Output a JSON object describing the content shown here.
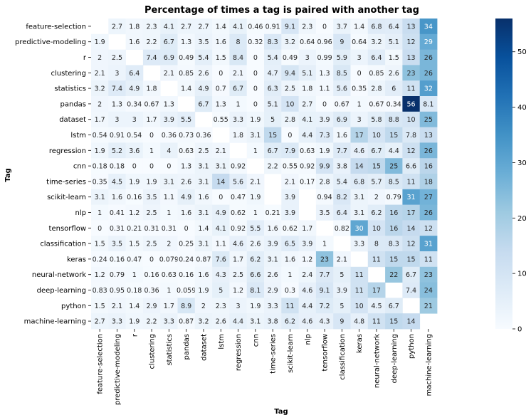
{
  "chart_data": {
    "type": "heatmap",
    "title": "Percentage of times a tag is paired with another tag",
    "xlabel": "Tag",
    "ylabel": "Tag",
    "x_categories": [
      "feature-selection",
      "predictive-modeling",
      "r",
      "clustering",
      "statistics",
      "pandas",
      "dataset",
      "lstm",
      "regression",
      "cnn",
      "time-series",
      "scikit-learn",
      "nlp",
      "tensorflow",
      "classification",
      "keras",
      "neural-network",
      "deep-learning",
      "python",
      "machine-learning"
    ],
    "y_categories": [
      "feature-selection",
      "predictive-modeling",
      "r",
      "clustering",
      "statistics",
      "pandas",
      "dataset",
      "lstm",
      "regression",
      "cnn",
      "time-series",
      "scikit-learn",
      "nlp",
      "tensorflow",
      "classification",
      "keras",
      "neural-network",
      "deep-learning",
      "python",
      "machine-learning"
    ],
    "values": [
      [
        null,
        2.7,
        1.8,
        2.3,
        4.1,
        2.7,
        2.7,
        1.4,
        4.1,
        0.46,
        0.91,
        9.1,
        2.3,
        0,
        3.7,
        1.4,
        6.8,
        6.4,
        13,
        34
      ],
      [
        1.9,
        null,
        1.6,
        2.2,
        6.7,
        1.3,
        3.5,
        1.6,
        8,
        0.32,
        8.3,
        3.2,
        0.64,
        0.96,
        9,
        0.64,
        3.2,
        5.1,
        12,
        29
      ],
      [
        2,
        2.5,
        null,
        7.4,
        6.9,
        0.49,
        5.4,
        1.5,
        8.4,
        0,
        5.4,
        0.49,
        3,
        0.99,
        5.9,
        3,
        6.4,
        1.5,
        13,
        26
      ],
      [
        2.1,
        3,
        6.4,
        null,
        2.1,
        0.85,
        2.6,
        0,
        2.1,
        0,
        4.7,
        9.4,
        5.1,
        1.3,
        8.5,
        0,
        0.85,
        2.6,
        23,
        26
      ],
      [
        3.2,
        7.4,
        4.9,
        1.8,
        null,
        1.4,
        4.9,
        0.7,
        6.7,
        0,
        6.3,
        2.5,
        1.8,
        1.1,
        5.6,
        0.35,
        2.8,
        6,
        11,
        32
      ],
      [
        2,
        1.3,
        0.34,
        0.67,
        1.3,
        null,
        6.7,
        1.3,
        1,
        0,
        5.1,
        10,
        2.7,
        0,
        0.67,
        1,
        0.67,
        0.34,
        56,
        8.1
      ],
      [
        1.7,
        3,
        3,
        1.7,
        3.9,
        5.5,
        null,
        0.55,
        3.3,
        1.9,
        5,
        2.8,
        4.1,
        3.9,
        6.9,
        3,
        5.8,
        8.8,
        10,
        25
      ],
      [
        0.54,
        0.91,
        0.54,
        0,
        0.36,
        0.73,
        0.36,
        null,
        1.8,
        3.1,
        15,
        0,
        4.4,
        7.3,
        1.6,
        17,
        10,
        15,
        7.8,
        13
      ],
      [
        1.9,
        5.2,
        3.6,
        1,
        4,
        0.63,
        2.5,
        2.1,
        null,
        1,
        6.7,
        7.9,
        0.63,
        1.9,
        7.7,
        4.6,
        6.7,
        4.4,
        12,
        26
      ],
      [
        0.18,
        0.18,
        0,
        0,
        0,
        1.3,
        3.1,
        3.1,
        0.92,
        null,
        2.2,
        0.55,
        0.92,
        9.9,
        3.8,
        14,
        15,
        25,
        6.6,
        16
      ],
      [
        0.35,
        4.5,
        1.9,
        1.9,
        3.1,
        2.6,
        3.1,
        14,
        5.6,
        2.1,
        null,
        2.1,
        0.17,
        2.8,
        5.4,
        6.8,
        5.7,
        8.5,
        11,
        18
      ],
      [
        3.1,
        1.6,
        0.16,
        3.5,
        1.1,
        4.9,
        1.6,
        0,
        0.47,
        1.9,
        null,
        3.9,
        null,
        0.94,
        8.2,
        3.1,
        2,
        0.79,
        31,
        27
      ],
      [
        1,
        0.41,
        1.2,
        2.5,
        1,
        1.6,
        3.1,
        4.9,
        0.62,
        1,
        0.21,
        3.9,
        null,
        3.5,
        6.4,
        3.1,
        6.2,
        16,
        17,
        26
      ],
      [
        0,
        0.31,
        0.21,
        0.31,
        0.31,
        0,
        1.4,
        4.1,
        0.92,
        5.5,
        1.6,
        0.62,
        1.7,
        null,
        0.82,
        30,
        10,
        16,
        14,
        12
      ],
      [
        1.5,
        3.5,
        1.5,
        2.5,
        2,
        0.25,
        3.1,
        1.1,
        4.6,
        2.6,
        3.9,
        6.5,
        3.9,
        1,
        null,
        3.3,
        8,
        8.3,
        12,
        31
      ],
      [
        0.24,
        0.16,
        0.47,
        0,
        0.079,
        0.24,
        0.87,
        7.6,
        1.7,
        6.2,
        3.1,
        1.6,
        1.2,
        23,
        2.1,
        null,
        11,
        15,
        15,
        11
      ],
      [
        1.2,
        0.79,
        1,
        0.16,
        0.63,
        0.16,
        1.6,
        4.3,
        2.5,
        6.6,
        2.6,
        1,
        2.4,
        7.7,
        5,
        11,
        null,
        22,
        6.7,
        23
      ],
      [
        0.83,
        0.95,
        0.18,
        0.36,
        1,
        0.059,
        1.9,
        5,
        1.2,
        8.1,
        2.9,
        0.3,
        4.6,
        9.1,
        3.9,
        11,
        17,
        null,
        7.4,
        24
      ],
      [
        1.5,
        2.1,
        1.4,
        2.9,
        1.7,
        8.9,
        2,
        2.3,
        3,
        1.9,
        3.3,
        11,
        4.4,
        7.2,
        5,
        10,
        4.5,
        6.7,
        null,
        21
      ],
      [
        2.7,
        3.3,
        1.9,
        2.2,
        3.3,
        0.87,
        3.2,
        2.6,
        4.4,
        3.1,
        3.8,
        6.2,
        4.6,
        4.3,
        9,
        4.8,
        11,
        15,
        14,
        null
      ]
    ],
    "colorbar": {
      "colormap": "Blues",
      "range": [
        0,
        56
      ],
      "ticks": [
        0,
        10,
        20,
        30,
        40,
        50
      ]
    },
    "grid": false,
    "legend": "colorbar-right"
  }
}
